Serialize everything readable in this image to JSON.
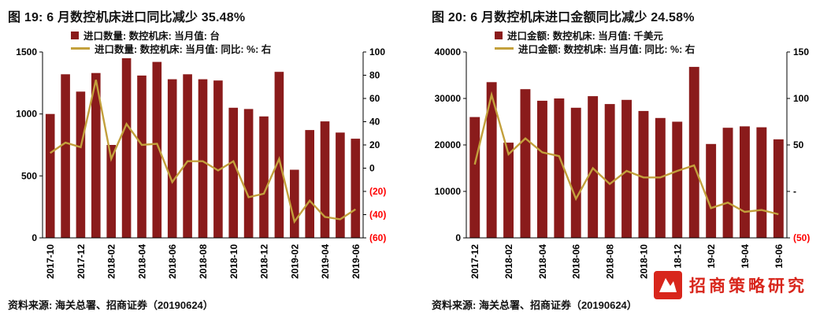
{
  "colors": {
    "bar": "#8a1b1b",
    "line": "#c3a03c",
    "negative": "#ff0000",
    "logo_red": "#d8261c"
  },
  "footer_logo": {
    "text": "招商策略研究"
  },
  "chart_data": [
    {
      "type": "bar+line",
      "title": "图 19: 6 月数控机床进口同比减少 35.48%",
      "source": "资料来源: 海关总署、招商证券（20190624）",
      "legend": [
        {
          "label": "进口数量: 数控机床: 当月值: 台",
          "marker": "bar"
        },
        {
          "label": "进口数量: 数控机床: 当月值: 同比: %: 右",
          "marker": "line"
        }
      ],
      "legend_position": "top-left-overlay",
      "grid": false,
      "categories": [
        "2017-10",
        "2017-11",
        "2017-12",
        "2018-01",
        "2018-02",
        "2018-03",
        "2018-04",
        "2018-05",
        "2018-06",
        "2018-07",
        "2018-08",
        "2018-09",
        "2018-10",
        "2018-11",
        "2018-12",
        "2019-01",
        "2019-02",
        "2019-03",
        "2019-04",
        "2019-05",
        "2019-06"
      ],
      "x_ticks": [
        {
          "i": 0,
          "label": "2017-10"
        },
        {
          "i": 2,
          "label": "2017-12"
        },
        {
          "i": 4,
          "label": "2018-02"
        },
        {
          "i": 6,
          "label": "2018-04"
        },
        {
          "i": 8,
          "label": "2018-06"
        },
        {
          "i": 10,
          "label": "2018-08"
        },
        {
          "i": 12,
          "label": "2018-10"
        },
        {
          "i": 14,
          "label": "2018-12"
        },
        {
          "i": 16,
          "label": "2019-02"
        },
        {
          "i": 18,
          "label": "2019-04"
        },
        {
          "i": 20,
          "label": "2019-06"
        }
      ],
      "left_axis": {
        "min": 0,
        "max": 1500,
        "ticks": [
          {
            "v": 1500,
            "label": "1500"
          },
          {
            "v": 1000,
            "label": "1000"
          },
          {
            "v": 500,
            "label": "500"
          },
          {
            "v": 0,
            "label": "0"
          }
        ]
      },
      "right_axis": {
        "min": -60,
        "max": 100,
        "ticks": [
          {
            "v": 100,
            "label": "100"
          },
          {
            "v": 80,
            "label": "80"
          },
          {
            "v": 60,
            "label": "60"
          },
          {
            "v": 40,
            "label": "40"
          },
          {
            "v": 20,
            "label": "20"
          },
          {
            "v": 0,
            "label": "0"
          },
          {
            "v": -20,
            "label": "(20)",
            "neg": true
          },
          {
            "v": -40,
            "label": "(40)",
            "neg": true
          },
          {
            "v": -60,
            "label": "(60)",
            "neg": true
          }
        ]
      },
      "series": [
        {
          "name": "进口数量: 数控机床: 当月值: 台",
          "type": "bar",
          "axis": "left",
          "values": [
            1000,
            1320,
            1180,
            1330,
            750,
            1450,
            1310,
            1420,
            1280,
            1320,
            1280,
            1270,
            1050,
            1040,
            980,
            1340,
            550,
            870,
            940,
            850,
            800
          ]
        },
        {
          "name": "进口数量: 数控机床: 当月值: 同比: %: 右",
          "type": "line",
          "axis": "right",
          "values": [
            13,
            22,
            18,
            76,
            8,
            38,
            20,
            21,
            -12,
            6,
            6,
            -2,
            6,
            -25,
            -22,
            8,
            -46,
            -28,
            -42,
            -44,
            -35.48
          ]
        }
      ]
    },
    {
      "type": "bar+line",
      "title": "图 20: 6 月数控机床进口金额同比减少 24.58%",
      "source": "资料来源: 海关总署、招商证券（20190624）",
      "legend": [
        {
          "label": "进口金额: 数控机床: 当月值: 千美元",
          "marker": "bar"
        },
        {
          "label": "进口金额: 数控机床: 当月值: 同比: %: 右",
          "marker": "line"
        }
      ],
      "legend_position": "top-left-overlay",
      "grid": false,
      "categories": [
        "2017-12",
        "2018-01",
        "2018-02",
        "2018-03",
        "2018-04",
        "2018-05",
        "2018-06",
        "2018-07",
        "2018-08",
        "2018-09",
        "2018-10",
        "2018-11",
        "2018-12",
        "2019-01",
        "2019-02",
        "2019-03",
        "2019-04",
        "2019-05",
        "2019-06"
      ],
      "x_ticks": [
        {
          "i": 0,
          "label": "2017-12"
        },
        {
          "i": 2,
          "label": "2018-02"
        },
        {
          "i": 4,
          "label": "2018-04"
        },
        {
          "i": 6,
          "label": "2018-06"
        },
        {
          "i": 8,
          "label": "2018-08"
        },
        {
          "i": 10,
          "label": "2018-10"
        },
        {
          "i": 12,
          "label": "2018-12"
        },
        {
          "i": 14,
          "label": "2019-02"
        },
        {
          "i": 16,
          "label": "2019-04"
        },
        {
          "i": 18,
          "label": "2019-06"
        }
      ],
      "left_axis": {
        "min": 0,
        "max": 40000,
        "ticks": [
          {
            "v": 40000,
            "label": "40000"
          },
          {
            "v": 30000,
            "label": "30000"
          },
          {
            "v": 20000,
            "label": "20000"
          },
          {
            "v": 10000,
            "label": "10000"
          },
          {
            "v": 0,
            "label": "0"
          }
        ]
      },
      "right_axis": {
        "min": -50,
        "max": 150,
        "ticks": [
          {
            "v": 150,
            "label": "150"
          },
          {
            "v": 100,
            "label": "100"
          },
          {
            "v": 50,
            "label": "50"
          },
          {
            "v": 0,
            "label": "-"
          },
          {
            "v": -50,
            "label": "(50)",
            "neg": true
          }
        ]
      },
      "series": [
        {
          "name": "进口金额: 数控机床: 当月值: 千美元",
          "type": "bar",
          "axis": "left",
          "values": [
            26000,
            33500,
            20500,
            32000,
            29500,
            30000,
            28000,
            30500,
            28800,
            29700,
            27300,
            25800,
            25000,
            36800,
            20200,
            23700,
            24000,
            23800,
            21200
          ]
        },
        {
          "name": "进口金额: 数控机床: 当月值: 同比: %: 右",
          "type": "line",
          "axis": "right",
          "values": [
            29,
            104,
            40,
            57,
            42,
            38,
            -8,
            25,
            8,
            22,
            15,
            15,
            22,
            28,
            -18,
            -12,
            -22,
            -20,
            -24.58
          ]
        }
      ]
    }
  ]
}
